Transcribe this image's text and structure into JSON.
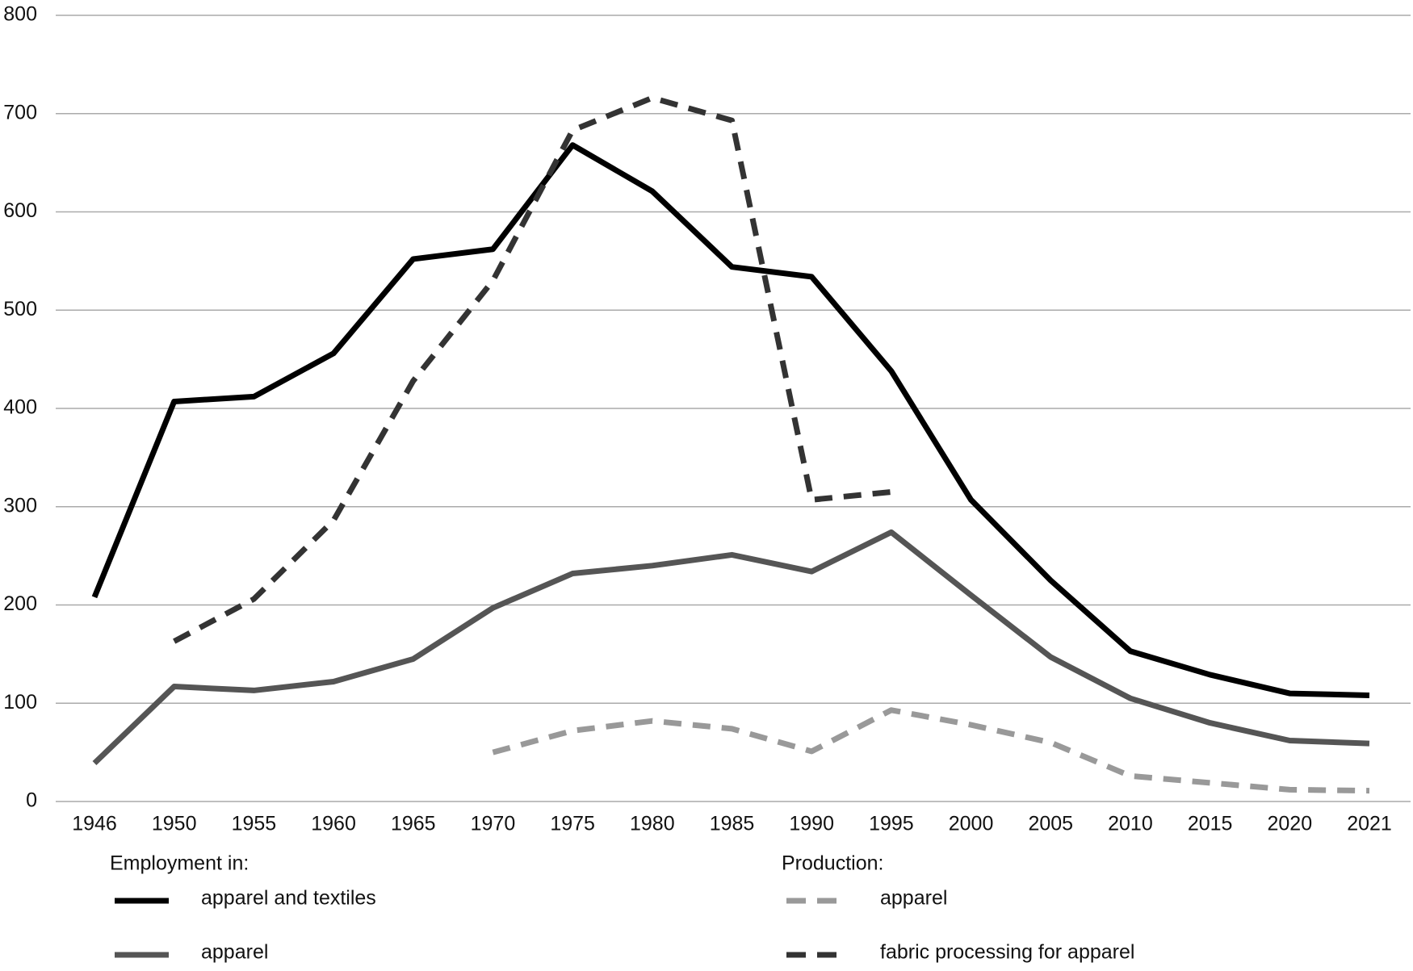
{
  "chart_data": {
    "type": "line",
    "categories": [
      "1946",
      "1950",
      "1955",
      "1960",
      "1965",
      "1970",
      "1975",
      "1980",
      "1985",
      "1990",
      "1995",
      "2000",
      "2005",
      "2010",
      "2015",
      "2020",
      "2021"
    ],
    "ylim": [
      0,
      800
    ],
    "yticks": [
      0,
      100,
      200,
      300,
      400,
      500,
      600,
      700,
      800
    ],
    "grid": true,
    "legend_groups": [
      {
        "title": "Employment in:"
      },
      {
        "title": "Production:"
      }
    ],
    "series": [
      {
        "name": "apparel and textiles",
        "color": "#000000",
        "dashed": false,
        "values": [
          208,
          407,
          412,
          456,
          552,
          562,
          668,
          621,
          544,
          534,
          438,
          307,
          225,
          153,
          129,
          110,
          108
        ]
      },
      {
        "name": "apparel",
        "color": "#555555",
        "dashed": false,
        "values": [
          39,
          117,
          113,
          122,
          145,
          197,
          232,
          240,
          251,
          234,
          274,
          210,
          147,
          105,
          80,
          62,
          59
        ]
      },
      {
        "name": "apparel",
        "color": "#999999",
        "dashed": true,
        "values": [
          null,
          null,
          null,
          null,
          null,
          50,
          72,
          82,
          74,
          51,
          93,
          78,
          60,
          26,
          19,
          12,
          11
        ]
      },
      {
        "name": "fabric processing for apparel",
        "color": "#333333",
        "dashed": true,
        "values": [
          null,
          163,
          206,
          286,
          428,
          530,
          683,
          716,
          693,
          307,
          315,
          null,
          null,
          null,
          null,
          null,
          null
        ]
      }
    ]
  }
}
